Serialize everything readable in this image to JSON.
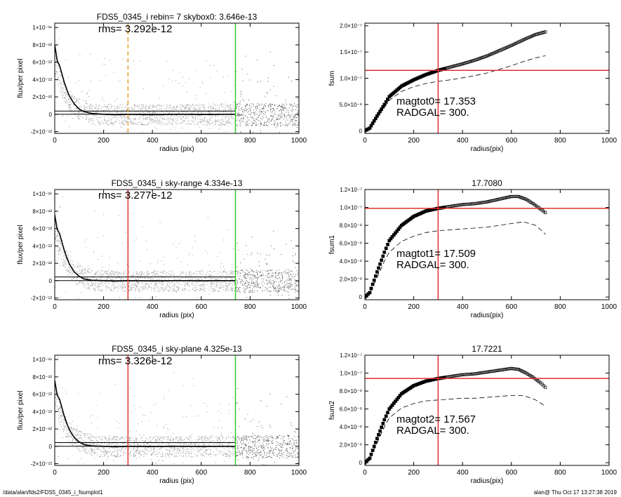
{
  "footer": {
    "path": "/data/alan/fds2/FDS5_0345_i_fsumplot1",
    "stamp": "alan@  Thu Oct 17 13:27:38 2019"
  },
  "colors": {
    "scatter": "#9a9a9a",
    "profile": "#000000",
    "skybox_line": "#e8a030",
    "radgal_line": "#e03030",
    "sky_radius_line": "#2ecc2e",
    "fsum_crosshair": "#e03030"
  },
  "chart_data": [
    {
      "type": "scatter",
      "panel": "profile-1",
      "title": "FDS5_0345_i rebin= 7    skybox0:  3.646e-13",
      "annotation": "rms= 3.292e-12",
      "xlabel": "radius (pix)",
      "ylabel": "flux/per pixel",
      "xlim": [
        0,
        1000
      ],
      "ylim": [
        -2.2e-12,
        1.05e-11
      ],
      "xticks": [
        0,
        200,
        400,
        600,
        800,
        1000
      ],
      "xtick_labels": [
        "0",
        "200",
        "400",
        "600",
        "800",
        "1000"
      ],
      "yticks": [
        -2e-12,
        0,
        2e-12,
        4e-12,
        6e-12,
        8e-12,
        1e-11
      ],
      "ytick_labels": [
        "-2×10⁻¹²",
        "0",
        "2×10⁻¹²",
        "4×10⁻¹²",
        "6×10⁻¹²",
        "8×10⁻¹²",
        "1×10⁻¹¹"
      ],
      "vlines": [
        {
          "x": 300,
          "style": "dashed",
          "color": "#e8a030"
        },
        {
          "x": 740,
          "style": "solid",
          "color": "#2ecc2e"
        }
      ],
      "hlines": [
        0,
        3.646e-13
      ],
      "profile": {
        "x": [
          0,
          10,
          20,
          30,
          40,
          50,
          60,
          80,
          100,
          120,
          150,
          200,
          250,
          300,
          400,
          500,
          600,
          700,
          740
        ],
        "y": [
          8e-12,
          6.2e-12,
          5.6e-12,
          4.6e-12,
          3.6e-12,
          2.8e-12,
          2.1e-12,
          1.2e-12,
          6e-13,
          3e-13,
          1e-13,
          0,
          -5e-14,
          0,
          -5e-14,
          0,
          -3e-14,
          0,
          0
        ]
      }
    },
    {
      "type": "scatter",
      "panel": "profile-2",
      "title": "FDS5_0345_i sky-range  4.334e-13",
      "annotation": "rms= 3.277e-12",
      "xlabel": "radius (pix)",
      "ylabel": "flux/per pixel",
      "xlim": [
        0,
        1000
      ],
      "ylim": [
        -2.2e-12,
        1.05e-11
      ],
      "xticks": [
        0,
        200,
        400,
        600,
        800,
        1000
      ],
      "xtick_labels": [
        "0",
        "200",
        "400",
        "600",
        "800",
        "1000"
      ],
      "yticks": [
        -2e-12,
        0,
        2e-12,
        4e-12,
        6e-12,
        8e-12,
        1e-11
      ],
      "ytick_labels": [
        "-2×10⁻¹²",
        "0",
        "2×10⁻¹²",
        "4×10⁻¹²",
        "6×10⁻¹²",
        "8×10⁻¹²",
        "1×10⁻¹¹"
      ],
      "vlines": [
        {
          "x": 300,
          "style": "solid",
          "color": "#e03030"
        },
        {
          "x": 740,
          "style": "solid",
          "color": "#2ecc2e"
        }
      ],
      "hlines": [
        0,
        4.334e-13
      ],
      "profile": {
        "x": [
          0,
          10,
          20,
          30,
          40,
          50,
          60,
          80,
          100,
          120,
          150,
          200,
          250,
          300,
          400,
          500,
          600,
          700,
          740
        ],
        "y": [
          7.6e-12,
          5.9e-12,
          5.4e-12,
          4.4e-12,
          3.4e-12,
          2.6e-12,
          1.9e-12,
          1e-12,
          5e-13,
          2e-13,
          5e-14,
          0,
          -5e-14,
          0,
          -3e-14,
          0,
          -2e-14,
          0,
          0
        ]
      }
    },
    {
      "type": "scatter",
      "panel": "profile-3",
      "title": "FDS5_0345_i sky-plane  4.325e-13",
      "annotation": "rms= 3.326e-12",
      "xlabel": "radius (pix)",
      "ylabel": "flux/per pixel",
      "xlim": [
        0,
        1000
      ],
      "ylim": [
        -2.2e-12,
        1.05e-11
      ],
      "xticks": [
        0,
        200,
        400,
        600,
        800,
        1000
      ],
      "xtick_labels": [
        "0",
        "200",
        "400",
        "600",
        "800",
        "1000"
      ],
      "yticks": [
        -2e-12,
        0,
        2e-12,
        4e-12,
        6e-12,
        8e-12,
        1e-11
      ],
      "ytick_labels": [
        "-2×10⁻¹²",
        "0",
        "2×10⁻¹²",
        "4×10⁻¹²",
        "6×10⁻¹²",
        "8×10⁻¹²",
        "1×10⁻¹¹"
      ],
      "vlines": [
        {
          "x": 300,
          "style": "solid",
          "color": "#e03030"
        },
        {
          "x": 740,
          "style": "solid",
          "color": "#2ecc2e"
        }
      ],
      "hlines": [
        0,
        4.325e-13
      ],
      "profile": {
        "x": [
          0,
          10,
          20,
          30,
          40,
          50,
          60,
          80,
          100,
          120,
          150,
          200,
          250,
          300,
          400,
          500,
          600,
          700,
          740
        ],
        "y": [
          7.6e-12,
          5.9e-12,
          5.4e-12,
          4.4e-12,
          3.4e-12,
          2.6e-12,
          1.9e-12,
          1e-12,
          5e-13,
          2e-13,
          5e-14,
          0,
          -5e-14,
          0,
          -3e-14,
          0,
          -2e-14,
          0,
          0
        ]
      }
    },
    {
      "type": "line",
      "panel": "fsum-1",
      "title": "",
      "xlabel": "radius(pix)",
      "ylabel": "fsum",
      "xlim": [
        0,
        1000
      ],
      "ylim": [
        -5e-09,
        2.05e-07
      ],
      "xticks": [
        0,
        200,
        400,
        600,
        800,
        1000
      ],
      "xtick_labels": [
        "0",
        "200",
        "400",
        "600",
        "800",
        "1000"
      ],
      "yticks": [
        0,
        5e-08,
        1e-07,
        1.5e-07,
        2e-07
      ],
      "ytick_labels": [
        "0",
        "5.0×10⁻⁸",
        "1.0×10⁻⁷",
        "1.5×10⁻⁷",
        "2.0×10⁻⁷"
      ],
      "annotations": [
        "magtot0=  17.353",
        "RADGAL=    300."
      ],
      "crosshair": {
        "x": 300,
        "y": 1.15e-07
      },
      "series": [
        {
          "style": "markers",
          "x": [
            0,
            20,
            50,
            80,
            100,
            150,
            200,
            250,
            300,
            350,
            400,
            450,
            500,
            550,
            600,
            650,
            700,
            740
          ],
          "y": [
            0,
            5e-09,
            2.8e-08,
            5e-08,
            6.5e-08,
            8.5e-08,
            9.7e-08,
            1.07e-07,
            1.15e-07,
            1.21e-07,
            1.27e-07,
            1.34e-07,
            1.42e-07,
            1.52e-07,
            1.62e-07,
            1.73e-07,
            1.83e-07,
            1.88e-07
          ]
        },
        {
          "style": "dashed",
          "x": [
            0,
            20,
            50,
            80,
            100,
            150,
            200,
            250,
            300,
            350,
            400,
            450,
            500,
            550,
            600,
            650,
            700,
            740
          ],
          "y": [
            0,
            4e-09,
            2.5e-08,
            4.5e-08,
            5.8e-08,
            7.5e-08,
            8.4e-08,
            9e-08,
            9.4e-08,
            9.7e-08,
            1.01e-07,
            1.05e-07,
            1.1e-07,
            1.17e-07,
            1.24e-07,
            1.32e-07,
            1.39e-07,
            1.43e-07
          ]
        }
      ]
    },
    {
      "type": "line",
      "panel": "fsum-2",
      "title": "17.7080",
      "xlabel": "radius(pix)",
      "ylabel": "fsum1",
      "xlim": [
        0,
        1000
      ],
      "ylim": [
        -3e-09,
        1.2e-07
      ],
      "xticks": [
        0,
        200,
        400,
        600,
        800,
        1000
      ],
      "xtick_labels": [
        "0",
        "200",
        "400",
        "600",
        "800",
        "1000"
      ],
      "yticks": [
        0,
        2e-08,
        4e-08,
        6e-08,
        8e-08,
        1e-07,
        1.2e-07
      ],
      "ytick_labels": [
        "0",
        "2.0×10⁻⁸",
        "4.0×10⁻⁸",
        "6.0×10⁻⁸",
        "8.0×10⁻⁸",
        "1.0×10⁻⁷",
        "1.2×10⁻⁷"
      ],
      "annotations": [
        "magtot1=  17.509",
        "RADGAL=    300."
      ],
      "crosshair": {
        "x": 300,
        "y": 9.9e-08
      },
      "series": [
        {
          "style": "markers",
          "x": [
            0,
            20,
            50,
            80,
            100,
            150,
            200,
            250,
            300,
            350,
            400,
            450,
            500,
            550,
            600,
            630,
            660,
            690,
            720,
            740
          ],
          "y": [
            0,
            5e-09,
            2.8e-08,
            5e-08,
            6.3e-08,
            8e-08,
            9e-08,
            9.6e-08,
            9.9e-08,
            1.01e-07,
            1.03e-07,
            1.04e-07,
            1.06e-07,
            1.09e-07,
            1.12e-07,
            1.12e-07,
            1.09e-07,
            1.04e-07,
            9.8e-08,
            9.4e-08
          ]
        },
        {
          "style": "dashed",
          "x": [
            0,
            20,
            50,
            80,
            100,
            150,
            200,
            250,
            300,
            350,
            400,
            450,
            500,
            550,
            600,
            650,
            700,
            740
          ],
          "y": [
            0,
            4e-09,
            2.2e-08,
            4e-08,
            5e-08,
            6.2e-08,
            6.8e-08,
            7.2e-08,
            7.4e-08,
            7.5e-08,
            7.6e-08,
            7.7e-08,
            7.8e-08,
            8e-08,
            8.2e-08,
            8.4e-08,
            8e-08,
            7e-08
          ]
        }
      ]
    },
    {
      "type": "line",
      "panel": "fsum-3",
      "title": "17.7221",
      "xlabel": "radius(pix)",
      "ylabel": "fsum2",
      "xlim": [
        0,
        1000
      ],
      "ylim": [
        -3e-09,
        1.2e-07
      ],
      "xticks": [
        0,
        200,
        400,
        600,
        800,
        1000
      ],
      "xtick_labels": [
        "0",
        "200",
        "400",
        "600",
        "800",
        "1000"
      ],
      "yticks": [
        0,
        2e-08,
        4e-08,
        6e-08,
        8e-08,
        1e-07,
        1.2e-07
      ],
      "ytick_labels": [
        "0",
        "2.0×10⁻⁸",
        "4.0×10⁻⁸",
        "6.0×10⁻⁸",
        "8.0×10⁻⁸",
        "1.0×10⁻⁷",
        "1.2×10⁻⁷"
      ],
      "annotations": [
        "magtot2=  17.567",
        "RADGAL=    300."
      ],
      "crosshair": {
        "x": 300,
        "y": 9.4e-08
      },
      "series": [
        {
          "style": "markers",
          "x": [
            0,
            20,
            50,
            80,
            100,
            150,
            200,
            250,
            300,
            350,
            400,
            450,
            500,
            550,
            600,
            630,
            660,
            690,
            720,
            740
          ],
          "y": [
            0,
            5e-09,
            2.7e-08,
            4.8e-08,
            6e-08,
            7.7e-08,
            8.6e-08,
            9.1e-08,
            9.4e-08,
            9.6e-08,
            9.8e-08,
            9.9e-08,
            1.01e-07,
            1.03e-07,
            1.05e-07,
            1.04e-07,
            1e-07,
            9.5e-08,
            8.9e-08,
            8.4e-08
          ]
        },
        {
          "style": "dashed",
          "x": [
            0,
            20,
            50,
            80,
            100,
            150,
            200,
            250,
            300,
            350,
            400,
            450,
            500,
            550,
            600,
            650,
            700,
            740
          ],
          "y": [
            0,
            4e-09,
            2.2e-08,
            4e-08,
            5e-08,
            6.1e-08,
            6.6e-08,
            6.9e-08,
            7e-08,
            7.1e-08,
            7.2e-08,
            7.2e-08,
            7.3e-08,
            7.4e-08,
            7.5e-08,
            7.5e-08,
            7e-08,
            6.3e-08
          ]
        }
      ]
    }
  ]
}
